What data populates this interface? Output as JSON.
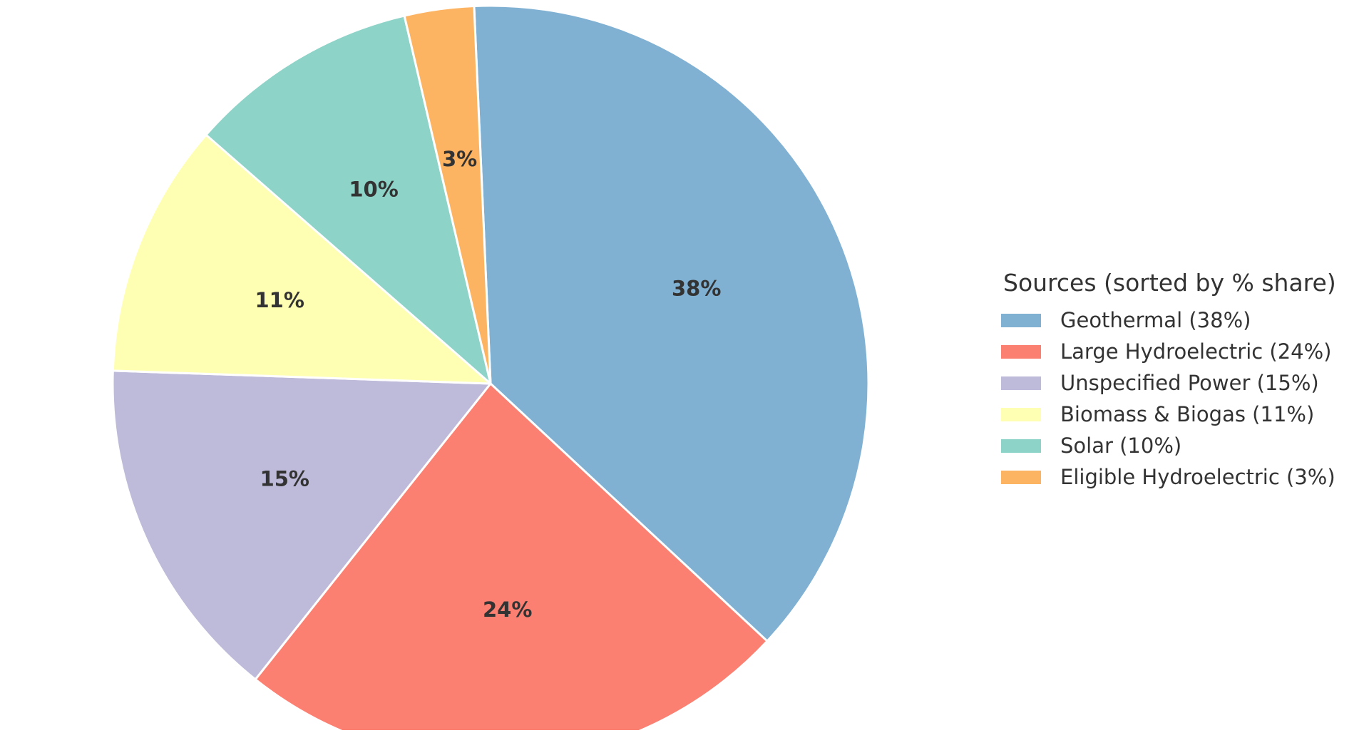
{
  "chart_data": {
    "type": "pie",
    "title": "",
    "slices": [
      {
        "label": "Geothermal",
        "value": 38,
        "pct_label": "38%",
        "color": "#80b1d3"
      },
      {
        "label": "Large Hydroelectric",
        "value": 24,
        "pct_label": "24%",
        "color": "#fb8072"
      },
      {
        "label": "Unspecified Power",
        "value": 15,
        "pct_label": "15%",
        "color": "#bebada"
      },
      {
        "label": "Biomass & Biogas",
        "value": 11,
        "pct_label": "11%",
        "color": "#ffffb3"
      },
      {
        "label": "Solar",
        "value": 10,
        "pct_label": "10%",
        "color": "#8dd3c7"
      },
      {
        "label": "Eligible Hydroelectric",
        "value": 3,
        "pct_label": "3%",
        "color": "#fdb462"
      }
    ],
    "legend": {
      "title": "Sources (sorted by % share)",
      "placement": "right",
      "entries": [
        "Geothermal (38%)",
        "Large Hydroelectric (24%)",
        "Unspecified Power (15%)",
        "Biomass & Biogas (11%)",
        "Solar (10%)",
        "Eligible Hydroelectric (3%)"
      ]
    }
  }
}
